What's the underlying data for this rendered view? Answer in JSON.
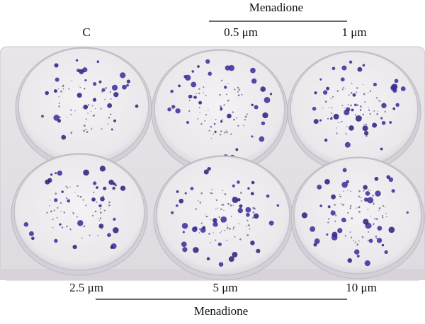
{
  "top_group": {
    "label": "Menadione"
  },
  "top_row": [
    "C",
    "0.5 μm",
    "1 μm"
  ],
  "bottom_row": [
    "2.5 μm",
    "5 μm",
    "10 μm"
  ],
  "bottom_group": {
    "label": "Menadione"
  }
}
